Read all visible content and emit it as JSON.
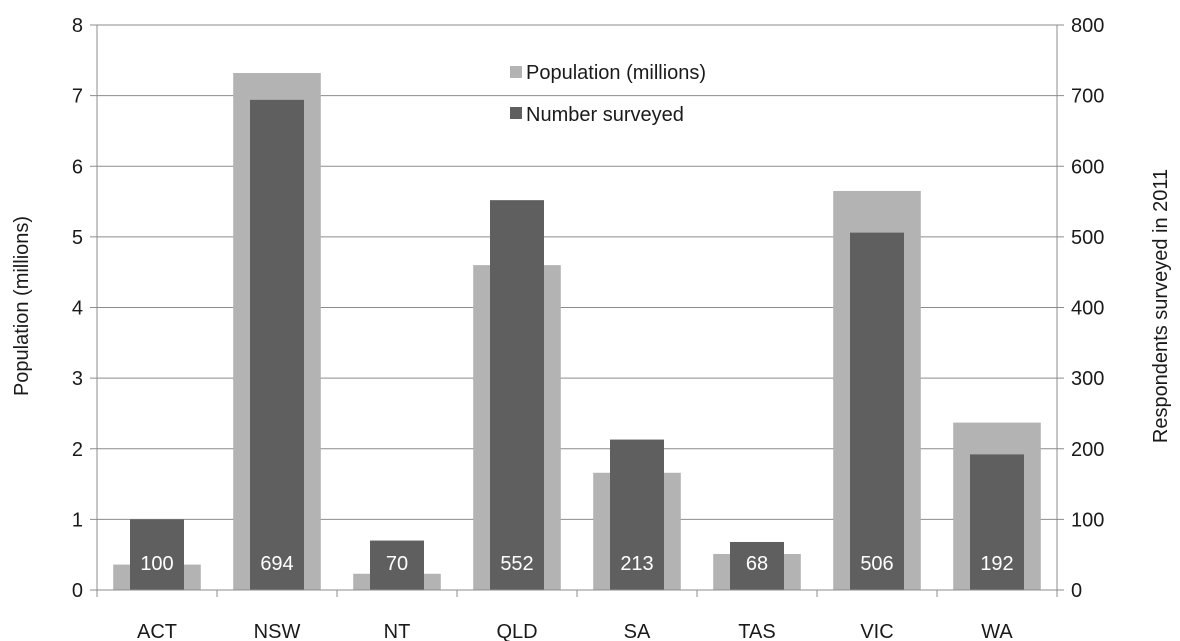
{
  "chart_data": {
    "type": "bar",
    "categories": [
      "ACT",
      "NSW",
      "NT",
      "QLD",
      "SA",
      "TAS",
      "VIC",
      "WA"
    ],
    "series": [
      {
        "name": "Population (millions)",
        "axis": "left",
        "color": "#b3b3b3",
        "values": [
          0.36,
          7.32,
          0.23,
          4.6,
          1.66,
          0.51,
          5.65,
          2.37
        ]
      },
      {
        "name": "Number surveyed",
        "axis": "right",
        "color": "#5f5f5f",
        "values": [
          100,
          694,
          70,
          552,
          213,
          68,
          506,
          192
        ],
        "data_labels": [
          "100",
          "694",
          "70",
          "552",
          "213",
          "68",
          "506",
          "192"
        ]
      }
    ],
    "ylabel": "Population (millions)",
    "y2label": "Respondents surveyed in 2011",
    "ylim": [
      0,
      8
    ],
    "y2lim": [
      0,
      800
    ],
    "yticks": [
      "0",
      "1",
      "2",
      "3",
      "4",
      "5",
      "6",
      "7",
      "8"
    ],
    "y2ticks": [
      "0",
      "100",
      "200",
      "300",
      "400",
      "500",
      "600",
      "700",
      "800"
    ],
    "grid": true,
    "legend_position": "top-center",
    "bar_layout": "overlapped"
  }
}
